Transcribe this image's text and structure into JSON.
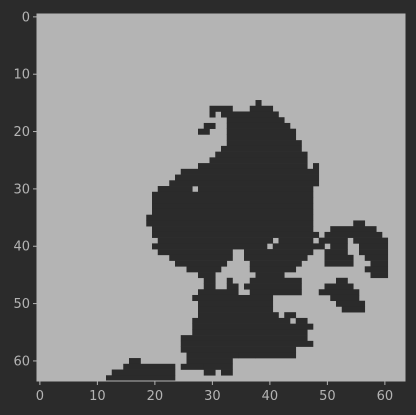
{
  "chart_data": {
    "type": "heatmap",
    "title": "",
    "xlabel": "",
    "ylabel": "",
    "grid": false,
    "legend": "none",
    "xlim": [
      -0.5,
      63.5
    ],
    "ylim": [
      63.5,
      -0.5
    ],
    "x_ticks": [
      0,
      10,
      20,
      30,
      40,
      50,
      60
    ],
    "y_ticks": [
      0,
      10,
      20,
      30,
      40,
      50,
      60
    ],
    "x_tick_labels": [
      "0",
      "10",
      "20",
      "30",
      "40",
      "50",
      "60"
    ],
    "y_tick_labels": [
      "0",
      "10",
      "20",
      "30",
      "40",
      "50",
      "60"
    ],
    "shape": [
      64,
      64
    ],
    "colors": {
      "background": "#b4b4b4",
      "foreground": "#2b2b2b",
      "figure": "#2b2b2b",
      "axis": "#b4b4b4"
    },
    "filled_runs": [
      [
        15,
        38,
        38
      ],
      [
        16,
        30,
        33
      ],
      [
        16,
        37,
        40
      ],
      [
        17,
        30,
        30
      ],
      [
        17,
        32,
        41
      ],
      [
        18,
        33,
        42
      ],
      [
        19,
        29,
        30
      ],
      [
        19,
        33,
        43
      ],
      [
        20,
        28,
        29
      ],
      [
        20,
        33,
        44
      ],
      [
        21,
        33,
        44
      ],
      [
        22,
        33,
        45
      ],
      [
        23,
        32,
        45
      ],
      [
        24,
        31,
        46
      ],
      [
        25,
        30,
        46
      ],
      [
        26,
        28,
        46
      ],
      [
        26,
        48,
        48
      ],
      [
        27,
        25,
        48
      ],
      [
        28,
        24,
        48
      ],
      [
        29,
        23,
        48
      ],
      [
        30,
        21,
        26
      ],
      [
        30,
        28,
        47
      ],
      [
        31,
        20,
        47
      ],
      [
        32,
        20,
        47
      ],
      [
        33,
        20,
        47
      ],
      [
        34,
        20,
        47
      ],
      [
        35,
        19,
        47
      ],
      [
        36,
        19,
        47
      ],
      [
        36,
        55,
        56
      ],
      [
        37,
        20,
        47
      ],
      [
        37,
        51,
        58
      ],
      [
        38,
        20,
        48
      ],
      [
        38,
        50,
        59
      ],
      [
        39,
        21,
        40
      ],
      [
        39,
        42,
        47
      ],
      [
        39,
        49,
        53
      ],
      [
        39,
        55,
        60
      ],
      [
        40,
        20,
        39
      ],
      [
        40,
        41,
        49
      ],
      [
        40,
        51,
        53
      ],
      [
        40,
        56,
        60
      ],
      [
        41,
        21,
        33
      ],
      [
        41,
        36,
        47
      ],
      [
        41,
        50,
        53
      ],
      [
        41,
        56,
        60
      ],
      [
        42,
        23,
        33
      ],
      [
        42,
        36,
        46
      ],
      [
        42,
        50,
        54
      ],
      [
        42,
        57,
        60
      ],
      [
        43,
        24,
        32
      ],
      [
        43,
        37,
        45
      ],
      [
        43,
        50,
        54
      ],
      [
        43,
        58,
        60
      ],
      [
        44,
        26,
        31
      ],
      [
        44,
        37,
        44
      ],
      [
        44,
        57,
        60
      ],
      [
        45,
        28,
        30
      ],
      [
        45,
        38,
        42
      ],
      [
        45,
        58,
        60
      ],
      [
        46,
        29,
        30
      ],
      [
        46,
        33,
        33
      ],
      [
        46,
        37,
        45
      ],
      [
        46,
        52,
        53
      ],
      [
        47,
        29,
        30
      ],
      [
        47,
        33,
        34
      ],
      [
        47,
        36,
        45
      ],
      [
        47,
        50,
        54
      ],
      [
        48,
        28,
        34
      ],
      [
        48,
        37,
        45
      ],
      [
        48,
        49,
        55
      ],
      [
        49,
        27,
        40
      ],
      [
        49,
        51,
        55
      ],
      [
        50,
        28,
        40
      ],
      [
        50,
        52,
        56
      ],
      [
        51,
        28,
        40
      ],
      [
        51,
        53,
        56
      ],
      [
        52,
        28,
        41
      ],
      [
        52,
        43,
        44
      ],
      [
        53,
        27,
        43
      ],
      [
        53,
        45,
        46
      ],
      [
        54,
        27,
        47
      ],
      [
        55,
        27,
        46
      ],
      [
        56,
        25,
        46
      ],
      [
        57,
        25,
        47
      ],
      [
        58,
        25,
        44
      ],
      [
        59,
        26,
        34
      ],
      [
        59,
        35,
        37
      ],
      [
        59,
        38,
        44
      ],
      [
        60,
        16,
        17
      ],
      [
        60,
        26,
        33
      ],
      [
        61,
        15,
        23
      ],
      [
        61,
        25,
        28
      ],
      [
        61,
        29,
        31
      ],
      [
        61,
        32,
        33
      ],
      [
        62,
        13,
        23
      ],
      [
        62,
        29,
        30
      ],
      [
        62,
        32,
        33
      ],
      [
        63,
        12,
        23
      ]
    ]
  }
}
